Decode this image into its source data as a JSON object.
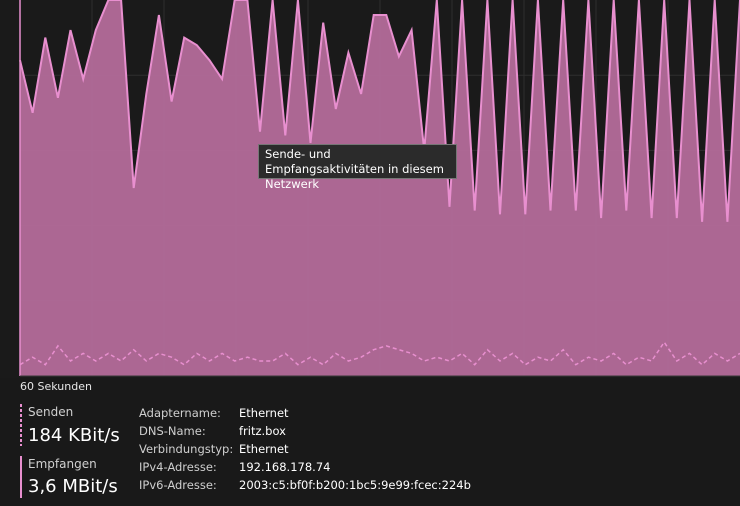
{
  "graph": {
    "tooltip": "Sende- und Empfangsaktivitäten in diesem Netzwerk",
    "time_span_label": "60 Sekunden",
    "receive_color": "#e88fcf",
    "receive_fill": "#b86e9d"
  },
  "chart_data": {
    "type": "area",
    "title": "",
    "xlabel": "60 Sekunden",
    "ylabel": "",
    "grid": true,
    "series": [
      {
        "name": "Empfangen",
        "style": "solid",
        "values": [
          84,
          70,
          90,
          74,
          92,
          79,
          92,
          100,
          100,
          50,
          75,
          96,
          73,
          90,
          88,
          84,
          79,
          100,
          100,
          65,
          100,
          64,
          100,
          62,
          94,
          71,
          86,
          75,
          96,
          96,
          85,
          92,
          60,
          100,
          45,
          100,
          44,
          100,
          43,
          100,
          43,
          100,
          44,
          100,
          44,
          100,
          42,
          100,
          44,
          100,
          42,
          100,
          42,
          100,
          41,
          100,
          41,
          100
        ]
      },
      {
        "name": "Senden",
        "style": "dashed",
        "values": [
          3,
          5,
          3,
          8,
          4,
          6,
          4,
          6,
          4,
          7,
          4,
          6,
          5,
          3,
          6,
          4,
          6,
          4,
          5,
          4,
          4,
          6,
          3,
          5,
          3,
          6,
          4,
          5,
          7,
          8,
          7,
          6,
          4,
          5,
          4,
          6,
          3,
          7,
          4,
          6,
          3,
          5,
          4,
          7,
          3,
          5,
          4,
          6,
          3,
          5,
          4,
          9,
          4,
          6,
          3,
          6,
          4,
          6
        ]
      }
    ]
  },
  "send": {
    "label": "Senden",
    "value": "184 KBit/s"
  },
  "receive": {
    "label": "Empfangen",
    "value": "3,6 MBit/s"
  },
  "details": [
    {
      "key": "Adaptername:",
      "value": "Ethernet"
    },
    {
      "key": "DNS-Name:",
      "value": "fritz.box"
    },
    {
      "key": "Verbindungstyp:",
      "value": "Ethernet"
    },
    {
      "key": "IPv4-Adresse:",
      "value": "192.168.178.74"
    },
    {
      "key": "IPv6-Adresse:",
      "value": "2003:c5:bf0f:b200:1bc5:9e99:fcec:224b"
    }
  ]
}
